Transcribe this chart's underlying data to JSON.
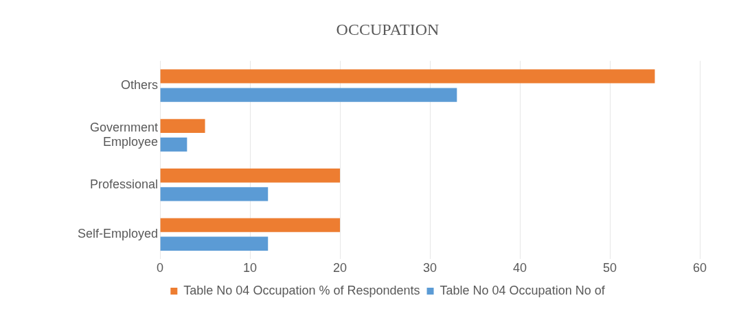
{
  "chart_data": {
    "type": "bar",
    "orientation": "horizontal",
    "title": "OCCUPATION",
    "categories": [
      "Others",
      "Government Employee",
      "Professional",
      "Self-Employed"
    ],
    "series": [
      {
        "name": "Table No 04 Occupation % of Respondents",
        "color": "#ed7d31",
        "values": [
          55,
          5,
          20,
          20
        ]
      },
      {
        "name": "Table No 04 Occupation No of",
        "color": "#5b9bd5",
        "values": [
          33,
          3,
          12,
          12
        ]
      }
    ],
    "xlim": [
      0,
      60
    ],
    "xticks": [
      0,
      10,
      20,
      30,
      40,
      50,
      60
    ],
    "grid": "x",
    "legend": "bottom"
  }
}
